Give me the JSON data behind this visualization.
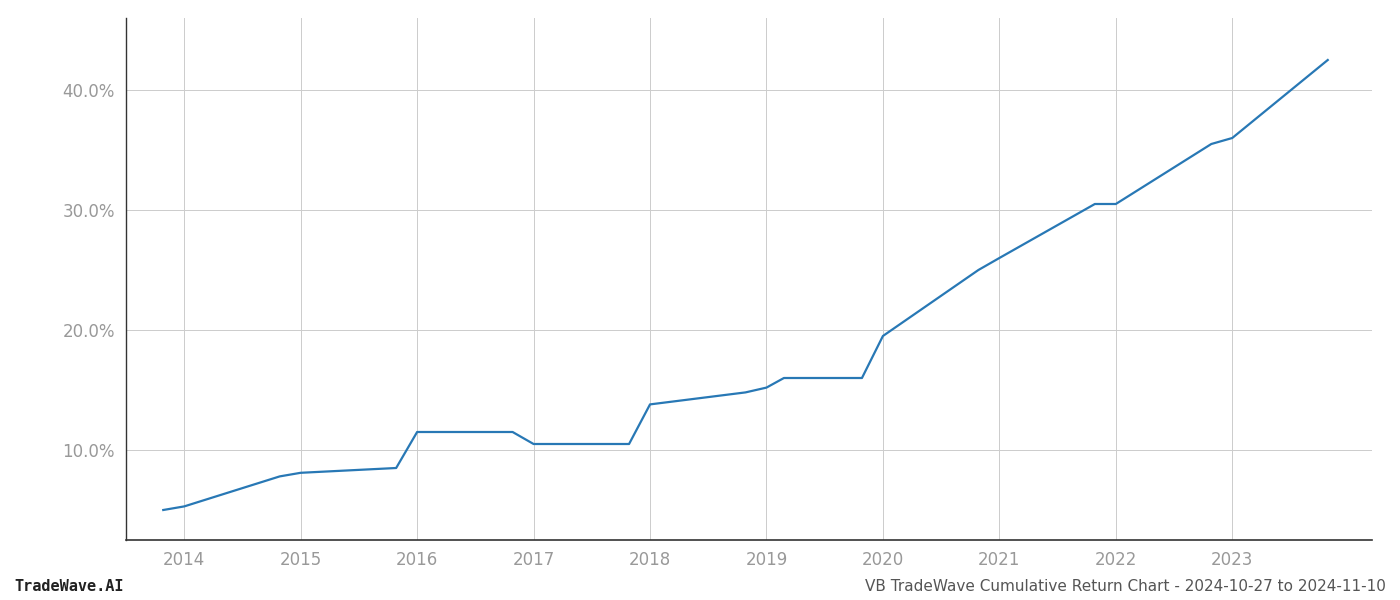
{
  "x_values": [
    2013.82,
    2014.0,
    2014.82,
    2015.0,
    2015.82,
    2016.0,
    2016.82,
    2017.0,
    2017.82,
    2018.0,
    2018.82,
    2019.0,
    2019.15,
    2019.82,
    2020.0,
    2020.82,
    2021.0,
    2021.82,
    2022.0,
    2022.82,
    2023.0,
    2023.82
  ],
  "y_values": [
    5.0,
    5.3,
    7.8,
    8.1,
    8.5,
    11.5,
    11.5,
    10.5,
    10.5,
    13.8,
    14.8,
    15.2,
    16.0,
    16.0,
    19.5,
    25.0,
    26.0,
    30.5,
    30.5,
    35.5,
    36.0,
    42.5
  ],
  "line_color": "#2878b5",
  "line_width": 1.6,
  "background_color": "#ffffff",
  "grid_color": "#cccccc",
  "title": "VB TradeWave Cumulative Return Chart - 2024-10-27 to 2024-11-10",
  "watermark": "TradeWave.AI",
  "x_ticks": [
    2014,
    2015,
    2016,
    2017,
    2018,
    2019,
    2020,
    2021,
    2022,
    2023
  ],
  "y_ticks": [
    10.0,
    20.0,
    30.0,
    40.0
  ],
  "xlim": [
    2013.5,
    2024.2
  ],
  "ylim": [
    2.5,
    46.0
  ],
  "tick_label_color": "#999999",
  "title_fontsize": 11,
  "watermark_fontsize": 11,
  "tick_fontsize": 12,
  "spine_color": "#333333"
}
